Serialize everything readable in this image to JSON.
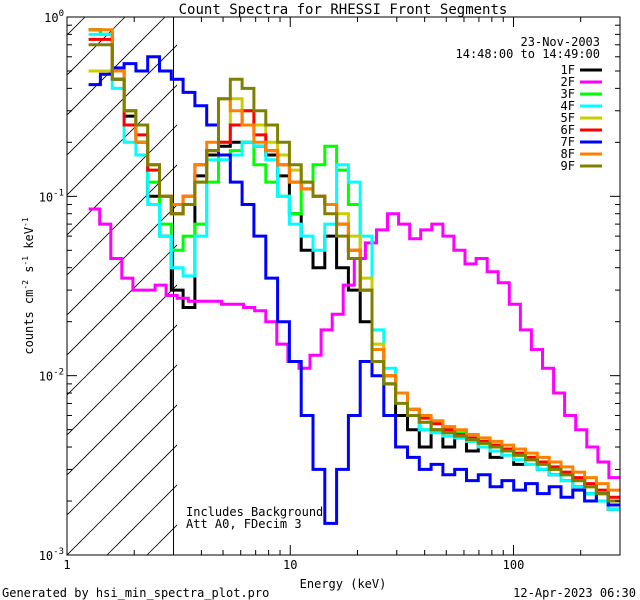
{
  "chart_data": {
    "type": "line",
    "title": "Count Spectra for RHESSI Front Segments",
    "xlabel": "Energy (keV)",
    "ylabel_parts": [
      "counts cm",
      "-2",
      " s",
      "-1",
      " keV",
      "-1"
    ],
    "xscale": "log",
    "yscale": "log",
    "xlim": [
      1,
      300
    ],
    "ylim": [
      0.001,
      1
    ],
    "x_ticks": [
      {
        "value": 1,
        "label": "1"
      },
      {
        "value": 10,
        "label": "10"
      },
      {
        "value": 100,
        "label": "100"
      }
    ],
    "y_ticks": [
      {
        "value": 1,
        "base": "10",
        "exp": "0"
      },
      {
        "value": 0.1,
        "base": "10",
        "exp": "-1"
      },
      {
        "value": 0.01,
        "base": "10",
        "exp": "-2"
      },
      {
        "value": 0.001,
        "base": "10",
        "exp": "-3"
      }
    ],
    "attenuator_edge_kev": 3,
    "date": "23-Nov-2003",
    "time_range": "14:48:00 to 14:49:00",
    "notes": [
      "Includes Background",
      "Att A0, FDecim 3"
    ],
    "footer_left": "Generated by hsi_min_spectra_plot.pro",
    "footer_right": "12-Apr-2023 06:30",
    "series": [
      {
        "name": "1F",
        "color": "#000000",
        "values": [
          0.85,
          0.8,
          0.45,
          0.28,
          0.2,
          0.1,
          0.06,
          0.03,
          0.024,
          0.13,
          0.17,
          0.19,
          0.2,
          0.2,
          0.19,
          0.17,
          0.13,
          0.08,
          0.05,
          0.04,
          0.06,
          0.04,
          0.03,
          0.02,
          0.012,
          0.009,
          0.006,
          0.005,
          0.004,
          0.005,
          0.004,
          0.0045,
          0.0038,
          0.0042,
          0.0035,
          0.0038,
          0.0032,
          0.0034,
          0.003,
          0.0028,
          0.0026,
          0.0024,
          0.0022,
          0.002,
          0.0018
        ]
      },
      {
        "name": "2F",
        "color": "#ff00ff",
        "values": [
          0.085,
          0.07,
          0.045,
          0.035,
          0.03,
          0.03,
          0.032,
          0.028,
          0.027,
          0.026,
          0.026,
          0.026,
          0.025,
          0.025,
          0.024,
          0.023,
          0.02,
          0.015,
          0.012,
          0.011,
          0.013,
          0.018,
          0.022,
          0.032,
          0.045,
          0.055,
          0.065,
          0.08,
          0.07,
          0.058,
          0.065,
          0.07,
          0.06,
          0.05,
          0.042,
          0.045,
          0.038,
          0.033,
          0.025,
          0.018,
          0.014,
          0.011,
          0.008,
          0.006,
          0.005,
          0.004,
          0.0033,
          0.0027
        ]
      },
      {
        "name": "3F",
        "color": "#00ff00",
        "values": [
          0.85,
          0.8,
          0.5,
          0.3,
          0.2,
          0.12,
          0.07,
          0.05,
          0.06,
          0.07,
          0.12,
          0.17,
          0.18,
          0.2,
          0.15,
          0.12,
          0.1,
          0.08,
          0.12,
          0.15,
          0.19,
          0.14,
          0.09,
          0.03,
          0.012,
          0.009,
          0.008,
          0.006,
          0.005,
          0.0055,
          0.005,
          0.0048,
          0.0045,
          0.0042,
          0.004,
          0.0038,
          0.0036,
          0.0034,
          0.0032,
          0.003,
          0.0028,
          0.0026,
          0.0024,
          0.0022,
          0.002
        ]
      },
      {
        "name": "4F",
        "color": "#00ffff",
        "values": [
          0.8,
          0.8,
          0.4,
          0.2,
          0.17,
          0.09,
          0.06,
          0.04,
          0.036,
          0.06,
          0.16,
          0.16,
          0.17,
          0.2,
          0.19,
          0.16,
          0.1,
          0.07,
          0.06,
          0.05,
          0.07,
          0.15,
          0.12,
          0.06,
          0.018,
          0.011,
          0.008,
          0.006,
          0.005,
          0.0048,
          0.0046,
          0.0045,
          0.0043,
          0.004,
          0.0038,
          0.0036,
          0.0034,
          0.0032,
          0.003,
          0.0028,
          0.0026,
          0.0024,
          0.0022,
          0.002,
          0.0018
        ]
      },
      {
        "name": "5F",
        "color": "#cccc00",
        "values": [
          0.5,
          0.5,
          0.5,
          0.3,
          0.25,
          0.15,
          0.1,
          0.08,
          0.09,
          0.12,
          0.18,
          0.2,
          0.35,
          0.3,
          0.25,
          0.2,
          0.17,
          0.14,
          0.12,
          0.1,
          0.09,
          0.08,
          0.06,
          0.035,
          0.015,
          0.01,
          0.008,
          0.006,
          0.0055,
          0.005,
          0.0048,
          0.0046,
          0.0044,
          0.0042,
          0.004,
          0.0038,
          0.0036,
          0.0034,
          0.0032,
          0.003,
          0.0028,
          0.0026,
          0.0024,
          0.0022,
          0.002
        ]
      },
      {
        "name": "6F",
        "color": "#ff0000",
        "values": [
          0.75,
          0.75,
          0.5,
          0.25,
          0.22,
          0.14,
          0.1,
          0.08,
          0.1,
          0.15,
          0.18,
          0.2,
          0.25,
          0.3,
          0.22,
          0.18,
          0.15,
          0.12,
          0.11,
          0.1,
          0.09,
          0.07,
          0.05,
          0.03,
          0.014,
          0.01,
          0.008,
          0.0065,
          0.0058,
          0.0054,
          0.005,
          0.0047,
          0.0045,
          0.0043,
          0.0041,
          0.0039,
          0.0037,
          0.0035,
          0.0033,
          0.0031,
          0.0029,
          0.0027,
          0.0025,
          0.0023,
          0.0021
        ]
      },
      {
        "name": "7F",
        "color": "#0000ff",
        "values": [
          0.42,
          0.48,
          0.52,
          0.55,
          0.5,
          0.6,
          0.5,
          0.45,
          0.38,
          0.32,
          0.25,
          0.17,
          0.12,
          0.09,
          0.06,
          0.035,
          0.02,
          0.012,
          0.006,
          0.003,
          0.0015,
          0.003,
          0.006,
          0.012,
          0.01,
          0.006,
          0.004,
          0.0035,
          0.003,
          0.0032,
          0.0028,
          0.003,
          0.0026,
          0.0028,
          0.0024,
          0.0026,
          0.0023,
          0.0025,
          0.0022,
          0.0024,
          0.0021,
          0.0023,
          0.002,
          0.0022,
          0.0019
        ]
      },
      {
        "name": "8F",
        "color": "#ff8000",
        "values": [
          0.85,
          0.85,
          0.5,
          0.3,
          0.2,
          0.15,
          0.1,
          0.09,
          0.1,
          0.15,
          0.2,
          0.35,
          0.3,
          0.25,
          0.2,
          0.18,
          0.15,
          0.12,
          0.11,
          0.1,
          0.09,
          0.07,
          0.05,
          0.03,
          0.014,
          0.01,
          0.008,
          0.0065,
          0.006,
          0.0056,
          0.0052,
          0.005,
          0.0047,
          0.0045,
          0.0043,
          0.0041,
          0.0039,
          0.0037,
          0.0035,
          0.0033,
          0.0031,
          0.0029,
          0.0027,
          0.0025,
          0.0023
        ]
      },
      {
        "name": "9F",
        "color": "#808000",
        "values": [
          0.7,
          0.7,
          0.45,
          0.3,
          0.25,
          0.15,
          0.1,
          0.08,
          0.09,
          0.12,
          0.18,
          0.35,
          0.45,
          0.4,
          0.3,
          0.25,
          0.2,
          0.15,
          0.12,
          0.1,
          0.08,
          0.06,
          0.045,
          0.03,
          0.012,
          0.009,
          0.007,
          0.006,
          0.0055,
          0.005,
          0.0048,
          0.0046,
          0.0044,
          0.0042,
          0.004,
          0.0038,
          0.0036,
          0.0034,
          0.0032,
          0.003,
          0.0028,
          0.0026,
          0.0024,
          0.0022,
          0.002
        ]
      }
    ]
  }
}
